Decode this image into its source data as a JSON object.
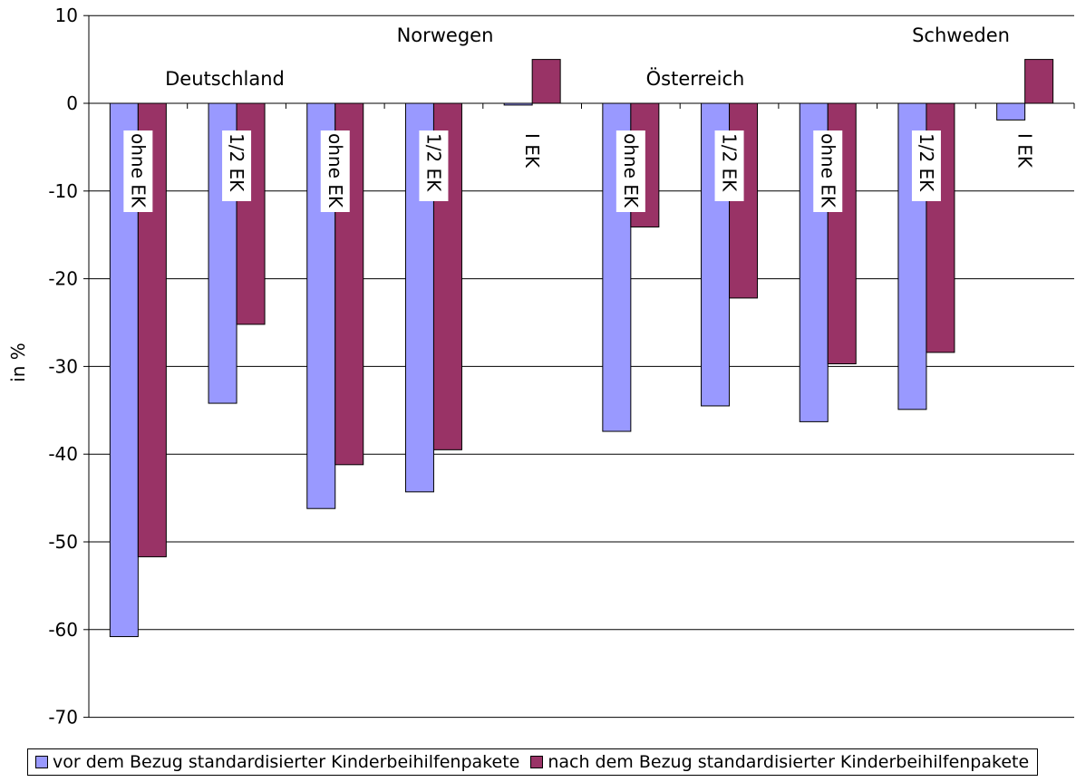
{
  "chart_data": {
    "type": "bar",
    "ylabel": "in %",
    "ylim": [
      -70,
      10
    ],
    "yticks": [
      10,
      0,
      -10,
      -20,
      -30,
      -40,
      -50,
      -60,
      -70
    ],
    "grid": true,
    "legend_position": "bottom",
    "categories": [
      "ohne EK",
      "1/2 EK",
      "ohne EK",
      "1/2 EK",
      "1 EK",
      "ohne EK",
      "1/2 EK",
      "ohne EK",
      "1/2 EK",
      "1 EK"
    ],
    "category_labels": [
      "ohne EK",
      "1/2 EK",
      "ohne EK",
      "1/2 EK",
      "I EK",
      "ohne EK",
      "1/2 EK",
      "ohne EK",
      "1/2 EK",
      "I EK"
    ],
    "country_labels": [
      {
        "text": "Deutschland",
        "group": 0
      },
      {
        "text": "Norwegen",
        "group": 3
      },
      {
        "text": "Österreich",
        "group": 6
      },
      {
        "text": "Schweden",
        "group": 9
      }
    ],
    "series": [
      {
        "name": "vor dem Bezug standardisierter Kinderbeihilfenpakete",
        "color": "#9999FF",
        "values": [
          -60.8,
          -34.2,
          -46.2,
          -44.3,
          -0.2,
          -37.4,
          -34.5,
          -36.3,
          -34.9,
          -1.9
        ]
      },
      {
        "name": "nach dem Bezug standardisierter Kinderbeihilfenpakete",
        "color": "#993366",
        "values": [
          -51.7,
          -25.2,
          -41.2,
          -39.5,
          5.0,
          -14.1,
          -22.2,
          -29.7,
          -28.4,
          5.0
        ]
      }
    ]
  }
}
